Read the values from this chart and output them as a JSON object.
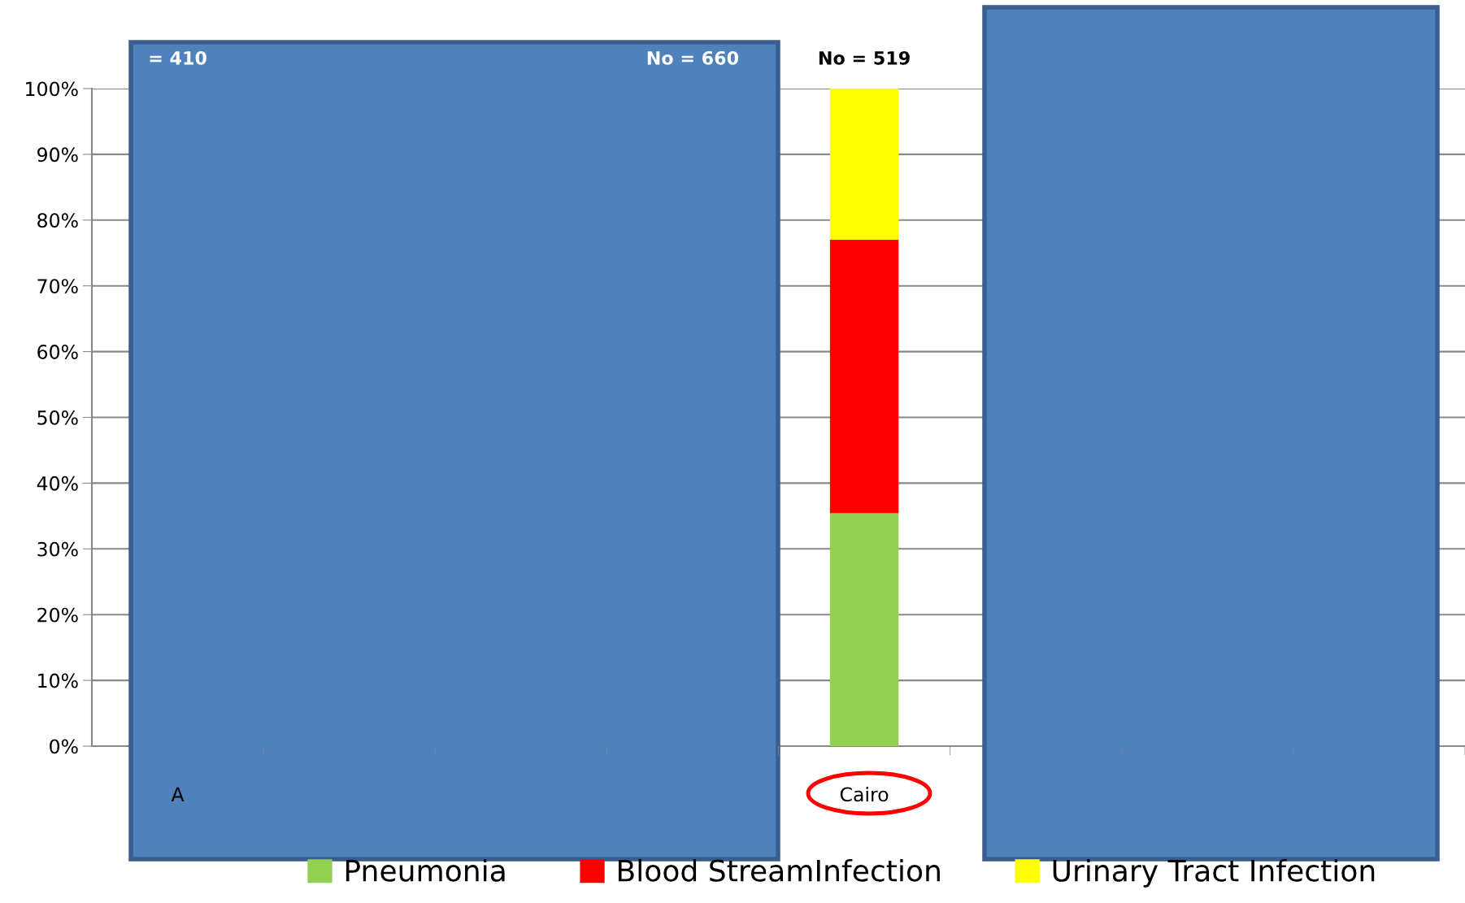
{
  "chart_data": {
    "type": "bar",
    "stacked": true,
    "categories": [
      "A",
      null,
      null,
      null,
      "Cairo",
      null,
      null,
      null
    ],
    "series": [
      {
        "name": "Pneumonia",
        "color": "#92d050",
        "values": [
          null,
          null,
          null,
          null,
          35.4,
          null,
          null,
          null
        ]
      },
      {
        "name": "Blood StreamInfection",
        "color": "#ff0000",
        "values": [
          null,
          null,
          null,
          null,
          41.6,
          null,
          null,
          null
        ]
      },
      {
        "name": "Urinary Tract Infection",
        "color": "#ffff00",
        "values": [
          null,
          null,
          null,
          null,
          23.0,
          null,
          null,
          null
        ]
      }
    ],
    "annotations": [
      "= 410",
      "No = 660",
      "No = 519"
    ],
    "ylim": [
      0,
      100
    ],
    "yticks": [
      {
        "value": 0,
        "label": "0%"
      },
      {
        "value": 10,
        "label": "10%"
      },
      {
        "value": 20,
        "label": "20%"
      },
      {
        "value": 30,
        "label": "30%"
      },
      {
        "value": 40,
        "label": "40%"
      },
      {
        "value": 50,
        "label": "50%"
      },
      {
        "value": 60,
        "label": "60%"
      },
      {
        "value": 70,
        "label": "70%"
      },
      {
        "value": 80,
        "label": "80%"
      },
      {
        "value": 90,
        "label": "90%"
      },
      {
        "value": 100,
        "label": "100%"
      }
    ],
    "grid": "y",
    "legend": "bottom"
  }
}
